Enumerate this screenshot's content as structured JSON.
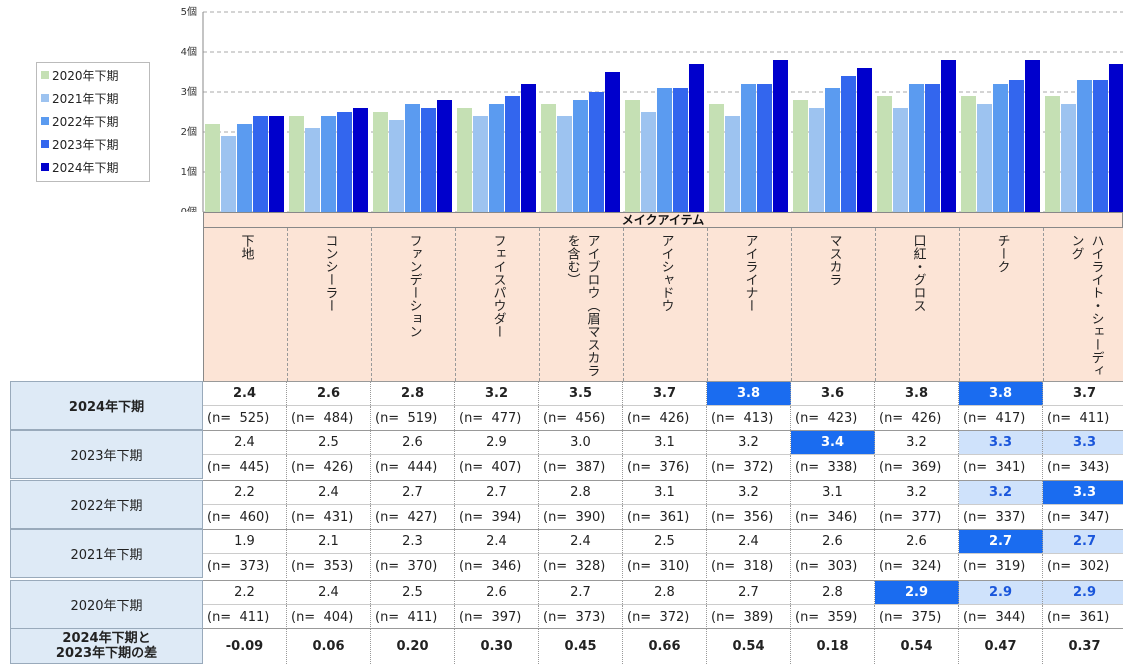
{
  "chart_data": {
    "type": "bar",
    "x_label": "メイクアイテム",
    "categories": [
      "下地",
      "コンシーラー",
      "ファンデーション",
      "フェイスパウダー",
      "アイブロウ（眉マスカラを含む）",
      "アイシャドウ",
      "アイライナー",
      "マスカラ",
      "口紅・グロス",
      "チーク",
      "ハイライト・シェーディング"
    ],
    "ylim": [
      0,
      5
    ],
    "yticks": [
      {
        "value": 0,
        "label": "0個"
      },
      {
        "value": 1,
        "label": "1個"
      },
      {
        "value": 2,
        "label": "2個"
      },
      {
        "value": 3,
        "label": "3個"
      },
      {
        "value": 4,
        "label": "4個"
      },
      {
        "value": 5,
        "label": "5個"
      }
    ],
    "grid": true,
    "legend": "left",
    "series": [
      {
        "name": "2020年下期",
        "color": "#c5e0b4",
        "values": [
          2.2,
          2.4,
          2.5,
          2.6,
          2.7,
          2.8,
          2.7,
          2.8,
          2.9,
          2.9,
          2.9
        ],
        "value_labels": [
          "2.2",
          "2.4",
          "2.5",
          "2.6",
          "2.7",
          "2.8",
          "2.7",
          "2.8",
          "2.9",
          "2.9",
          "2.9"
        ],
        "n_labels": [
          "(n=  411)",
          "(n=  404)",
          "(n=  411)",
          "(n=  397)",
          "(n=  373)",
          "(n=  372)",
          "(n=  389)",
          "(n=  359)",
          "(n=  375)",
          "(n=  344)",
          "(n=  361)"
        ]
      },
      {
        "name": "2021年下期",
        "color": "#9dc3f0",
        "values": [
          1.9,
          2.1,
          2.3,
          2.4,
          2.4,
          2.5,
          2.4,
          2.6,
          2.6,
          2.7,
          2.7
        ],
        "value_labels": [
          "1.9",
          "2.1",
          "2.3",
          "2.4",
          "2.4",
          "2.5",
          "2.4",
          "2.6",
          "2.6",
          "2.7",
          "2.7"
        ],
        "n_labels": [
          "(n=  373)",
          "(n=  353)",
          "(n=  370)",
          "(n=  346)",
          "(n=  328)",
          "(n=  310)",
          "(n=  318)",
          "(n=  303)",
          "(n=  324)",
          "(n=  319)",
          "(n=  302)"
        ]
      },
      {
        "name": "2022年下期",
        "color": "#5b9bf0",
        "values": [
          2.2,
          2.4,
          2.7,
          2.7,
          2.8,
          3.1,
          3.2,
          3.1,
          3.2,
          3.2,
          3.3
        ],
        "value_labels": [
          "2.2",
          "2.4",
          "2.7",
          "2.7",
          "2.8",
          "3.1",
          "3.2",
          "3.1",
          "3.2",
          "3.2",
          "3.3"
        ],
        "n_labels": [
          "(n=  460)",
          "(n=  431)",
          "(n=  427)",
          "(n=  394)",
          "(n=  390)",
          "(n=  361)",
          "(n=  356)",
          "(n=  346)",
          "(n=  377)",
          "(n=  337)",
          "(n=  347)"
        ]
      },
      {
        "name": "2023年下期",
        "color": "#3366ee",
        "values": [
          2.4,
          2.5,
          2.6,
          2.9,
          3.0,
          3.1,
          3.2,
          3.4,
          3.2,
          3.3,
          3.3
        ],
        "value_labels": [
          "2.4",
          "2.5",
          "2.6",
          "2.9",
          "3.0",
          "3.1",
          "3.2",
          "3.4",
          "3.2",
          "3.3",
          "3.3"
        ],
        "n_labels": [
          "(n=  445)",
          "(n=  426)",
          "(n=  444)",
          "(n=  407)",
          "(n=  387)",
          "(n=  376)",
          "(n=  372)",
          "(n=  338)",
          "(n=  369)",
          "(n=  341)",
          "(n=  343)"
        ]
      },
      {
        "name": "2024年下期",
        "color": "#0000cc",
        "values": [
          2.4,
          2.6,
          2.8,
          3.2,
          3.5,
          3.7,
          3.8,
          3.6,
          3.8,
          3.8,
          3.7
        ],
        "value_labels": [
          "2.4",
          "2.6",
          "2.8",
          "3.2",
          "3.5",
          "3.7",
          "3.8",
          "3.6",
          "3.8",
          "3.8",
          "3.7"
        ],
        "n_labels": [
          "(n=  525)",
          "(n=  484)",
          "(n=  519)",
          "(n=  477)",
          "(n=  456)",
          "(n=  426)",
          "(n=  413)",
          "(n=  423)",
          "(n=  426)",
          "(n=  417)",
          "(n=  411)"
        ]
      }
    ],
    "highlight_strong": {
      "color": "#1a6cf0",
      "cells": [
        [
          4,
          6
        ],
        [
          4,
          9
        ],
        [
          3,
          7
        ],
        [
          2,
          10
        ],
        [
          1,
          9
        ],
        [
          0,
          8
        ]
      ]
    },
    "highlight_light": {
      "color": "#cfe2fb",
      "cells": [
        [
          3,
          9
        ],
        [
          3,
          10
        ],
        [
          2,
          9
        ],
        [
          1,
          10
        ],
        [
          0,
          9
        ],
        [
          0,
          10
        ]
      ]
    },
    "diff_label": "2024年下期と\n2023年下期の差",
    "diff": [
      "-0.09",
      "0.06",
      "0.20",
      "0.30",
      "0.45",
      "0.66",
      "0.54",
      "0.18",
      "0.54",
      "0.47",
      "0.37"
    ]
  }
}
